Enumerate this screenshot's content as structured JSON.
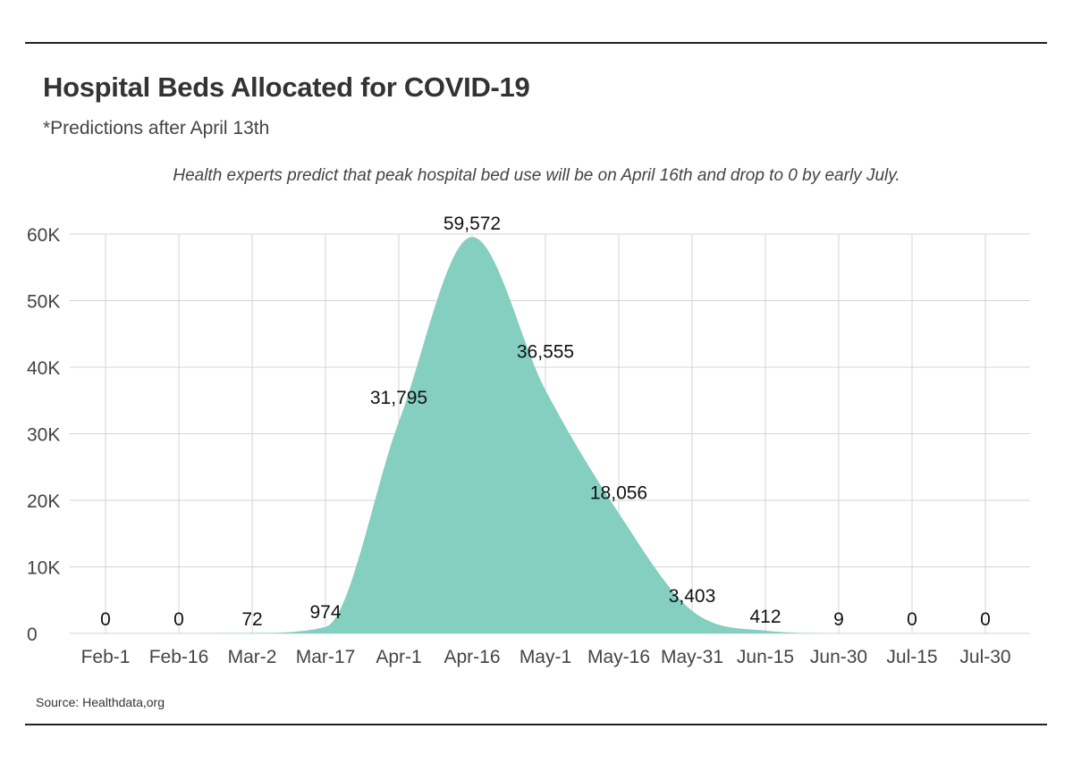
{
  "title": "Hospital Beds Allocated for COVID-19",
  "subtitle": "*Predictions after April 13th",
  "annotation": "Health experts predict that peak hospital bed use will be on April 16th and drop to 0 by early July.",
  "source": "Source: Healthdata,org",
  "chart_data": {
    "type": "area",
    "title": "Hospital Beds Allocated for COVID-19",
    "subtitle": "*Predictions after April 13th",
    "xlabel": "",
    "ylabel": "",
    "color": "#85cfc0",
    "grid": true,
    "ylim": [
      0,
      60000
    ],
    "yticks": [
      {
        "value": 0,
        "label": "0"
      },
      {
        "value": 10000,
        "label": "10K"
      },
      {
        "value": 20000,
        "label": "20K"
      },
      {
        "value": 30000,
        "label": "30K"
      },
      {
        "value": 40000,
        "label": "40K"
      },
      {
        "value": 50000,
        "label": "50K"
      },
      {
        "value": 60000,
        "label": "60K"
      }
    ],
    "categories": [
      "Feb-1",
      "Feb-16",
      "Mar-2",
      "Mar-17",
      "Apr-1",
      "Apr-16",
      "May-1",
      "May-16",
      "May-31",
      "Jun-15",
      "Jun-30",
      "Jul-15",
      "Jul-30"
    ],
    "values": [
      0,
      0,
      72,
      974,
      31795,
      59572,
      36555,
      18056,
      3403,
      412,
      9,
      0,
      0
    ],
    "data_labels": [
      "0",
      "0",
      "72",
      "974",
      "31,795",
      "59,572",
      "36,555",
      "18,056",
      "3,403",
      "412",
      "9",
      "0",
      "0"
    ]
  }
}
